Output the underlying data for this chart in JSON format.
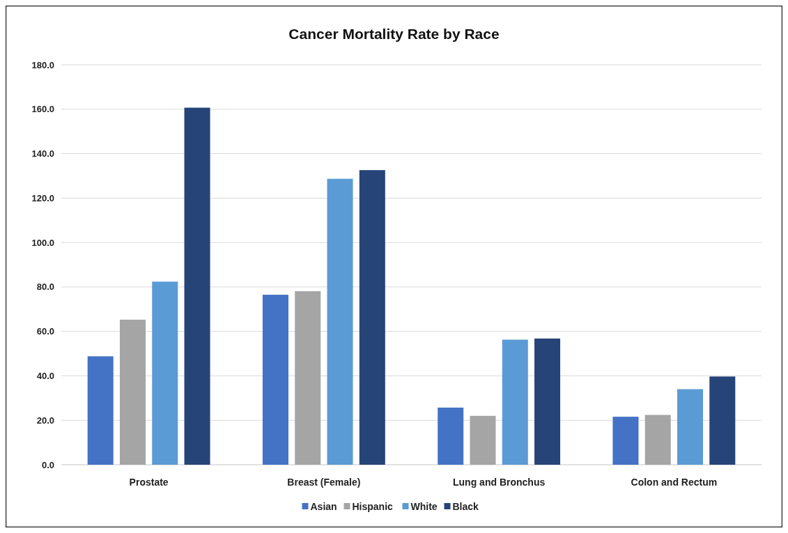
{
  "chart_data": {
    "type": "bar",
    "title": "Cancer Mortality Rate by Race",
    "categories": [
      "Prostate",
      "Breast (Female)",
      "Lung and Bronchus",
      "Colon and Rectum"
    ],
    "series": [
      {
        "name": "Asian",
        "color": "#4472c4",
        "values": [
          48.8,
          76.5,
          25.7,
          21.6
        ]
      },
      {
        "name": "Hispanic",
        "color": "#a5a5a5",
        "values": [
          65.3,
          78.1,
          22.0,
          22.4
        ]
      },
      {
        "name": "White",
        "color": "#5b9bd5",
        "values": [
          82.4,
          128.7,
          56.3,
          34.0
        ]
      },
      {
        "name": "Black",
        "color": "#264478",
        "values": [
          160.7,
          132.6,
          56.8,
          39.7
        ]
      }
    ],
    "ylim": [
      0,
      180
    ],
    "yticks": [
      {
        "value": 0,
        "label": "0.0"
      },
      {
        "value": 20,
        "label": "20.0"
      },
      {
        "value": 40,
        "label": "40.0"
      },
      {
        "value": 60,
        "label": "60.0"
      },
      {
        "value": 80,
        "label": "80.0"
      },
      {
        "value": 100,
        "label": "100.0"
      },
      {
        "value": 120,
        "label": "120.0"
      },
      {
        "value": 140,
        "label": "140.0"
      },
      {
        "value": 160,
        "label": "160.0"
      },
      {
        "value": 180,
        "label": "180.0"
      }
    ],
    "grid": "y",
    "legend": "bottom"
  }
}
